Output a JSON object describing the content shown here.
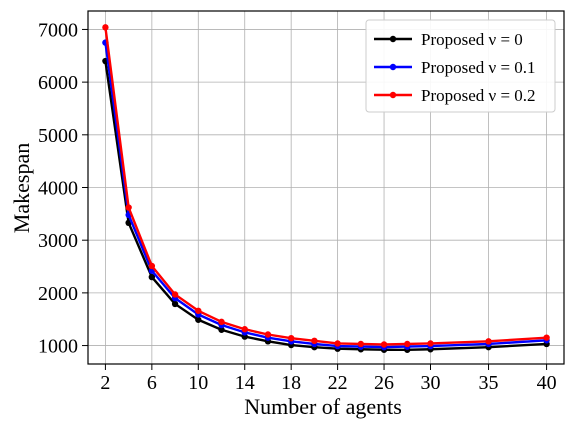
{
  "chart_data": {
    "type": "line",
    "xlabel": "Number of agents",
    "ylabel": "Makespan",
    "x": [
      2,
      4,
      6,
      8,
      10,
      12,
      14,
      16,
      18,
      20,
      22,
      24,
      26,
      28,
      30,
      35,
      40
    ],
    "xticks": [
      2,
      6,
      10,
      14,
      18,
      22,
      26,
      30,
      35,
      40
    ],
    "yticks": [
      1000,
      2000,
      3000,
      4000,
      5000,
      6000,
      7000
    ],
    "xlim": [
      0.5,
      41.5
    ],
    "ylim": [
      650,
      7350
    ],
    "grid": true,
    "legend_position": "top-right",
    "series": [
      {
        "name": "Proposed ν = 0",
        "color": "#000000",
        "values": [
          6400,
          3330,
          2300,
          1790,
          1490,
          1300,
          1170,
          1080,
          1010,
          970,
          940,
          930,
          920,
          920,
          930,
          970,
          1030
        ]
      },
      {
        "name": "Proposed ν = 0.1",
        "color": "#0000ff",
        "values": [
          6750,
          3480,
          2420,
          1900,
          1590,
          1390,
          1250,
          1150,
          1080,
          1030,
          990,
          980,
          970,
          980,
          990,
          1030,
          1100
        ]
      },
      {
        "name": "Proposed ν = 0.2",
        "color": "#ff0000",
        "values": [
          7040,
          3620,
          2510,
          1970,
          1660,
          1450,
          1310,
          1210,
          1140,
          1090,
          1040,
          1030,
          1020,
          1030,
          1040,
          1080,
          1150
        ]
      }
    ]
  }
}
